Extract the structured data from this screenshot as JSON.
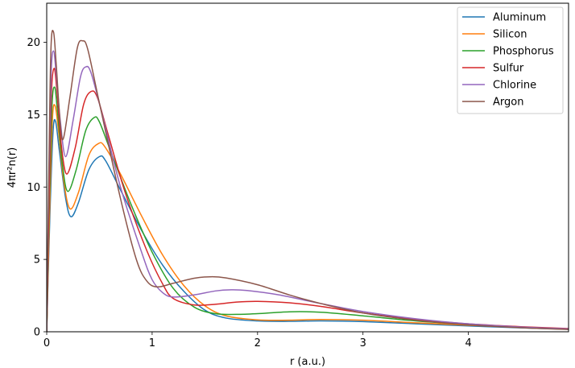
{
  "chart_data": {
    "type": "line",
    "xlabel": "r (a.u.)",
    "ylabel": "4πr²n(r)",
    "xlim": [
      0,
      4.95
    ],
    "ylim": [
      0,
      22.7
    ],
    "xticks": [
      0,
      1,
      2,
      3,
      4
    ],
    "yticks": [
      0,
      5,
      10,
      15,
      20
    ],
    "grid": false,
    "legend_position": "top-right",
    "series": [
      {
        "name": "Aluminum",
        "color": "#1f77b4",
        "points": [
          [
            0,
            0
          ],
          [
            0.03,
            8
          ],
          [
            0.06,
            13.8
          ],
          [
            0.085,
            14.5
          ],
          [
            0.12,
            12.5
          ],
          [
            0.18,
            9.2
          ],
          [
            0.23,
            7.95
          ],
          [
            0.3,
            8.9
          ],
          [
            0.4,
            11.2
          ],
          [
            0.5,
            12.1
          ],
          [
            0.56,
            11.8
          ],
          [
            0.7,
            9.8
          ],
          [
            0.9,
            7.0
          ],
          [
            1.1,
            4.6
          ],
          [
            1.3,
            2.8
          ],
          [
            1.5,
            1.5
          ],
          [
            1.7,
            0.95
          ],
          [
            2.0,
            0.75
          ],
          [
            2.3,
            0.72
          ],
          [
            2.6,
            0.75
          ],
          [
            3.0,
            0.7
          ],
          [
            3.5,
            0.55
          ],
          [
            4.0,
            0.4
          ],
          [
            4.5,
            0.27
          ],
          [
            4.95,
            0.18
          ]
        ]
      },
      {
        "name": "Silicon",
        "color": "#ff7f0e",
        "points": [
          [
            0,
            0
          ],
          [
            0.03,
            9
          ],
          [
            0.055,
            14.8
          ],
          [
            0.08,
            15.6
          ],
          [
            0.11,
            14.0
          ],
          [
            0.16,
            10.5
          ],
          [
            0.22,
            8.5
          ],
          [
            0.3,
            9.6
          ],
          [
            0.4,
            12.2
          ],
          [
            0.49,
            13.0
          ],
          [
            0.55,
            12.8
          ],
          [
            0.7,
            10.9
          ],
          [
            0.9,
            8.0
          ],
          [
            1.1,
            5.3
          ],
          [
            1.3,
            3.2
          ],
          [
            1.5,
            1.8
          ],
          [
            1.7,
            1.1
          ],
          [
            2.0,
            0.82
          ],
          [
            2.3,
            0.8
          ],
          [
            2.6,
            0.85
          ],
          [
            3.0,
            0.8
          ],
          [
            3.5,
            0.62
          ],
          [
            4.0,
            0.45
          ],
          [
            4.5,
            0.3
          ],
          [
            4.95,
            0.2
          ]
        ]
      },
      {
        "name": "Phosphorus",
        "color": "#2ca02c",
        "points": [
          [
            0,
            0
          ],
          [
            0.025,
            9
          ],
          [
            0.05,
            15.6
          ],
          [
            0.075,
            16.9
          ],
          [
            0.1,
            15.4
          ],
          [
            0.15,
            11.5
          ],
          [
            0.2,
            9.7
          ],
          [
            0.28,
            11.2
          ],
          [
            0.37,
            13.9
          ],
          [
            0.45,
            14.8
          ],
          [
            0.5,
            14.5
          ],
          [
            0.6,
            12.6
          ],
          [
            0.8,
            8.8
          ],
          [
            1.0,
            5.5
          ],
          [
            1.2,
            3.0
          ],
          [
            1.4,
            1.7
          ],
          [
            1.6,
            1.25
          ],
          [
            1.8,
            1.2
          ],
          [
            2.0,
            1.25
          ],
          [
            2.3,
            1.38
          ],
          [
            2.6,
            1.35
          ],
          [
            3.0,
            1.1
          ],
          [
            3.5,
            0.75
          ],
          [
            4.0,
            0.5
          ],
          [
            4.5,
            0.32
          ],
          [
            4.95,
            0.2
          ]
        ]
      },
      {
        "name": "Sulfur",
        "color": "#d62728",
        "points": [
          [
            0,
            0
          ],
          [
            0.025,
            10
          ],
          [
            0.045,
            16.5
          ],
          [
            0.07,
            18.2
          ],
          [
            0.095,
            16.8
          ],
          [
            0.14,
            12.8
          ],
          [
            0.19,
            10.9
          ],
          [
            0.27,
            12.7
          ],
          [
            0.35,
            15.7
          ],
          [
            0.42,
            16.6
          ],
          [
            0.48,
            16.2
          ],
          [
            0.58,
            13.7
          ],
          [
            0.75,
            9.5
          ],
          [
            0.95,
            5.6
          ],
          [
            1.1,
            3.3
          ],
          [
            1.2,
            2.3
          ],
          [
            1.4,
            1.85
          ],
          [
            1.6,
            1.9
          ],
          [
            1.8,
            2.05
          ],
          [
            2.0,
            2.1
          ],
          [
            2.3,
            2.0
          ],
          [
            2.6,
            1.75
          ],
          [
            3.0,
            1.3
          ],
          [
            3.5,
            0.85
          ],
          [
            4.0,
            0.55
          ],
          [
            4.5,
            0.35
          ],
          [
            4.95,
            0.22
          ]
        ]
      },
      {
        "name": "Chlorine",
        "color": "#9467bd",
        "points": [
          [
            0,
            0
          ],
          [
            0.02,
            10
          ],
          [
            0.042,
            17.8
          ],
          [
            0.065,
            19.4
          ],
          [
            0.09,
            17.8
          ],
          [
            0.13,
            14.5
          ],
          [
            0.18,
            12.1
          ],
          [
            0.25,
            14.6
          ],
          [
            0.32,
            17.6
          ],
          [
            0.37,
            18.3
          ],
          [
            0.42,
            17.9
          ],
          [
            0.52,
            15.2
          ],
          [
            0.7,
            10.0
          ],
          [
            0.9,
            5.5
          ],
          [
            1.0,
            3.6
          ],
          [
            1.1,
            2.7
          ],
          [
            1.2,
            2.4
          ],
          [
            1.4,
            2.55
          ],
          [
            1.6,
            2.82
          ],
          [
            1.75,
            2.9
          ],
          [
            1.9,
            2.85
          ],
          [
            2.2,
            2.55
          ],
          [
            2.6,
            1.95
          ],
          [
            3.0,
            1.4
          ],
          [
            3.5,
            0.9
          ],
          [
            4.0,
            0.55
          ],
          [
            4.5,
            0.33
          ],
          [
            4.95,
            0.2
          ]
        ]
      },
      {
        "name": "Argon",
        "color": "#8c564b",
        "points": [
          [
            0,
            0
          ],
          [
            0.02,
            11
          ],
          [
            0.04,
            19.5
          ],
          [
            0.065,
            20.7
          ],
          [
            0.09,
            18.5
          ],
          [
            0.13,
            14.2
          ],
          [
            0.16,
            13.4
          ],
          [
            0.22,
            16.2
          ],
          [
            0.29,
            19.6
          ],
          [
            0.34,
            20.1
          ],
          [
            0.39,
            19.5
          ],
          [
            0.5,
            15.8
          ],
          [
            0.7,
            9.2
          ],
          [
            0.85,
            5.0
          ],
          [
            0.95,
            3.5
          ],
          [
            1.05,
            3.1
          ],
          [
            1.2,
            3.35
          ],
          [
            1.4,
            3.7
          ],
          [
            1.55,
            3.8
          ],
          [
            1.7,
            3.72
          ],
          [
            2.0,
            3.25
          ],
          [
            2.3,
            2.55
          ],
          [
            2.6,
            1.95
          ],
          [
            3.0,
            1.3
          ],
          [
            3.5,
            0.8
          ],
          [
            4.0,
            0.48
          ],
          [
            4.5,
            0.28
          ],
          [
            4.95,
            0.16
          ]
        ]
      }
    ]
  }
}
